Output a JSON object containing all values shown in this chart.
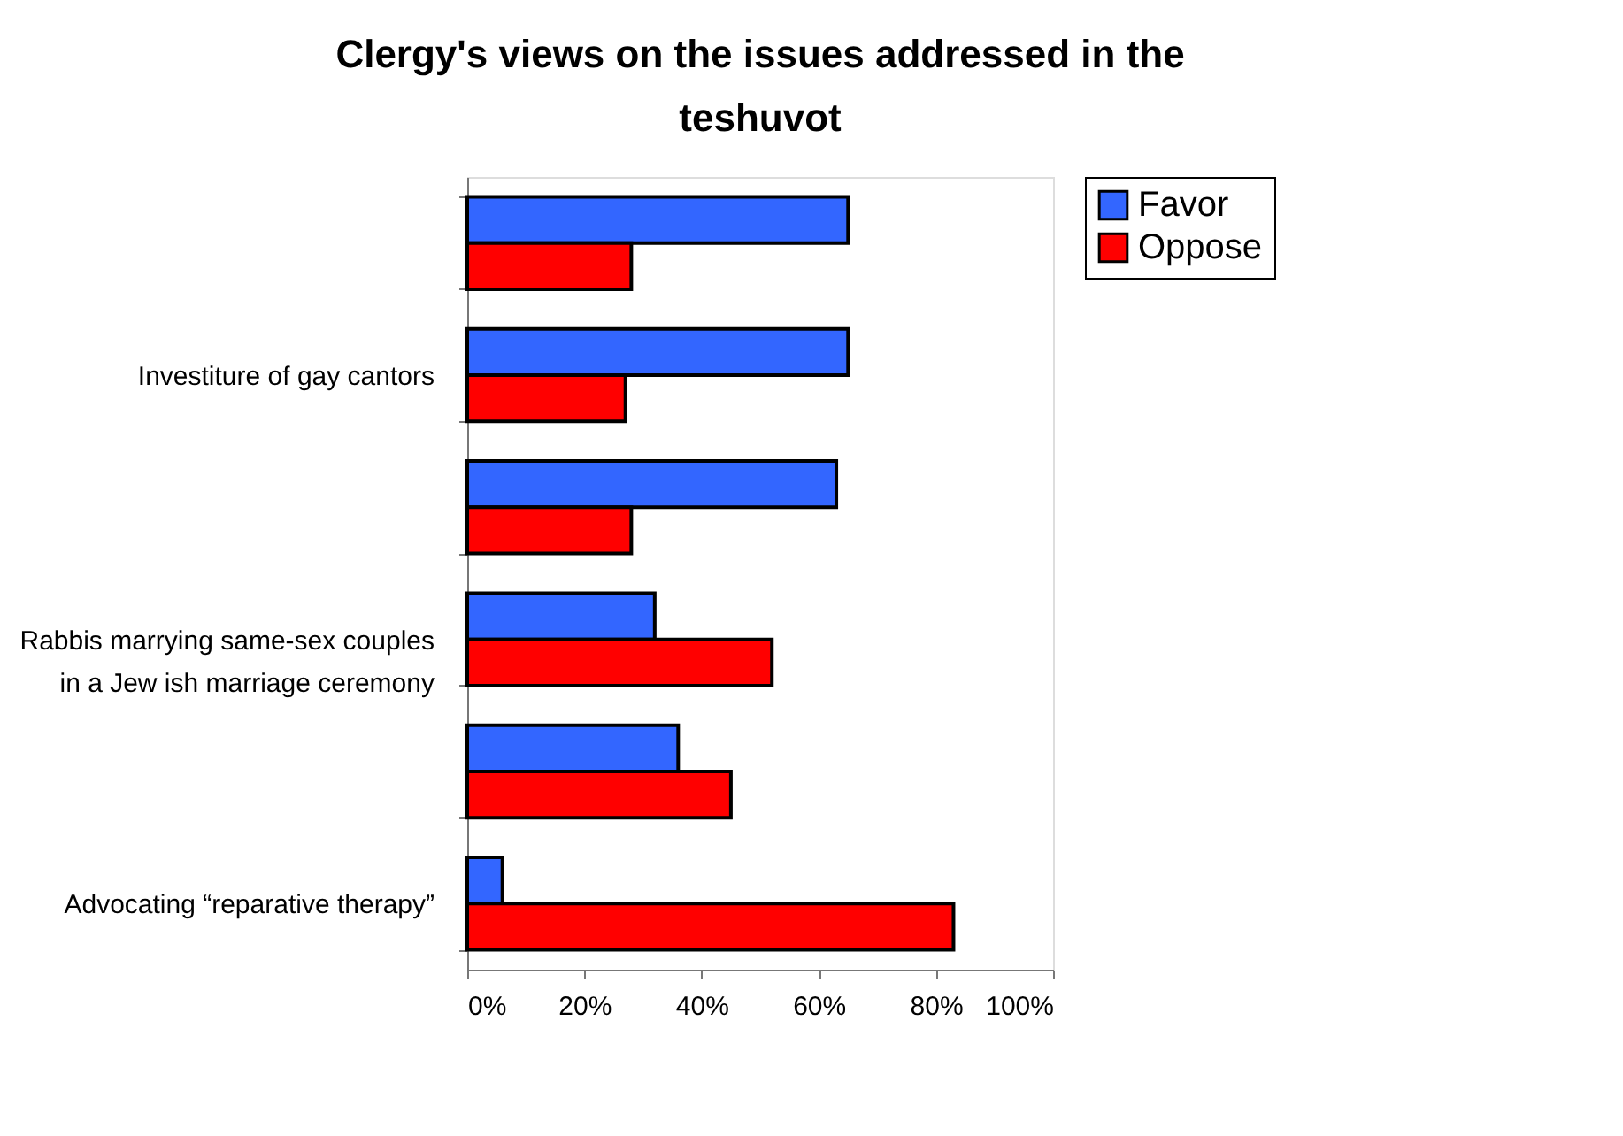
{
  "chart_data": {
    "type": "bar",
    "orientation": "horizontal",
    "title": "Clergy's views on the issues addressed in the teshuvot",
    "categories": [
      null,
      "Investiture of gay cantors",
      null,
      "Rabbis marrying same-sex couples\nin a Jew ish marriage ceremony",
      null,
      "Advocating “reparative therapy”"
    ],
    "series": [
      {
        "name": "Favor",
        "color": "#3366ff",
        "values": [
          65,
          65,
          63,
          32,
          36,
          6
        ]
      },
      {
        "name": "Oppose",
        "color": "#ff0000",
        "values": [
          28,
          27,
          28,
          52,
          45,
          83
        ]
      }
    ],
    "xlim": [
      0,
      100
    ],
    "xticks": [
      {
        "value": 0,
        "label": "0%"
      },
      {
        "value": 20,
        "label": "20%"
      },
      {
        "value": 40,
        "label": "40%"
      },
      {
        "value": 60,
        "label": "60%"
      },
      {
        "value": 80,
        "label": "80%"
      },
      {
        "value": 100,
        "label": "100%"
      }
    ],
    "grid": false,
    "legend": "right"
  }
}
